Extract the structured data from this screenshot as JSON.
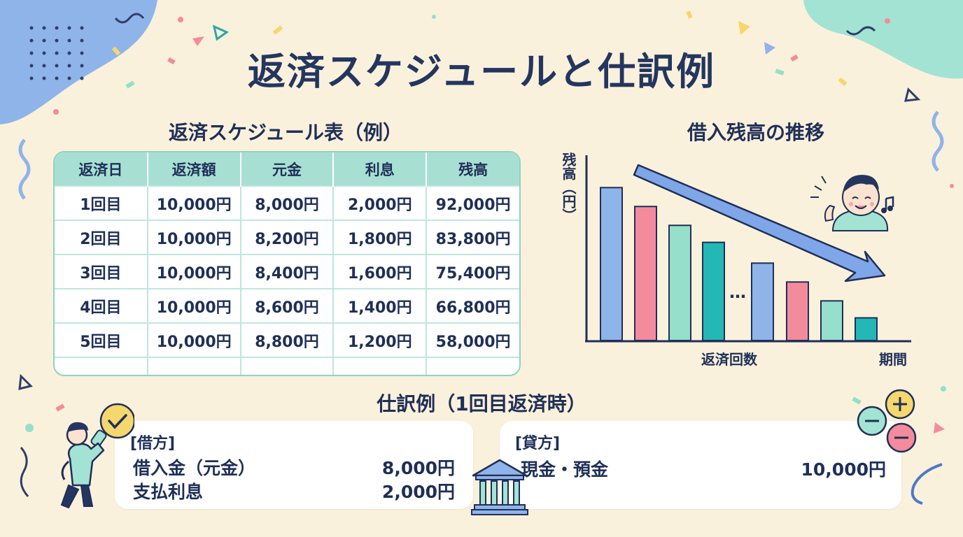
{
  "title": "返済スケジュールと仕訳例",
  "schedule": {
    "title": "返済スケジュール表（例）",
    "headers": [
      "返済日",
      "返済額",
      "元金",
      "利息",
      "残高"
    ],
    "rows": [
      [
        "1回目",
        "10,000円",
        "8,000円",
        "2,000円",
        "92,000円"
      ],
      [
        "2回目",
        "10,000円",
        "8,200円",
        "1,800円",
        "83,800円"
      ],
      [
        "3回目",
        "10,000円",
        "8,400円",
        "1,600円",
        "75,400円"
      ],
      [
        "4回目",
        "10,000円",
        "8,600円",
        "1,400円",
        "66,800円"
      ],
      [
        "5回目",
        "10,000円",
        "8,800円",
        "1,200円",
        "58,000円"
      ],
      [
        "…",
        "…",
        "…",
        "…",
        "…"
      ]
    ]
  },
  "balance_chart": {
    "title": "借入残高の推移",
    "ylabel": "残高（円）",
    "xlabel": "返済回数",
    "xlabel_end": "期間",
    "ellipsis": "…",
    "bar_levels": [
      0.81,
      0.71,
      0.61,
      0.52,
      0.41,
      0.31,
      0.21,
      0.12
    ],
    "bar_colors": [
      "#8fb4ea",
      "#f48b9c",
      "#95dfcb",
      "#23b7b5",
      "#8fb4ea",
      "#f48b9c",
      "#95dfcb",
      "#23b7b5"
    ]
  },
  "journal": {
    "title": "仕訳例（1回目返済時）",
    "debit": {
      "heading": "[借方]",
      "rows": [
        {
          "account": "借入金（元金）",
          "amount": "8,000円"
        },
        {
          "account": "支払利息",
          "amount": "2,000円"
        }
      ]
    },
    "credit": {
      "heading": "[貸方]",
      "rows": [
        {
          "account": "現金・預金",
          "amount": "10,000円"
        }
      ]
    }
  },
  "icons": [
    "bank-icon",
    "coin-plus-icon",
    "coin-minus-icon",
    "person-with-check-icon",
    "happy-person-icon",
    "music-note-icon"
  ],
  "colors": {
    "background": "#faf1dc",
    "title": "#24365f",
    "table_header": "#a7e0d3",
    "arrow": "#7fa6e8"
  }
}
